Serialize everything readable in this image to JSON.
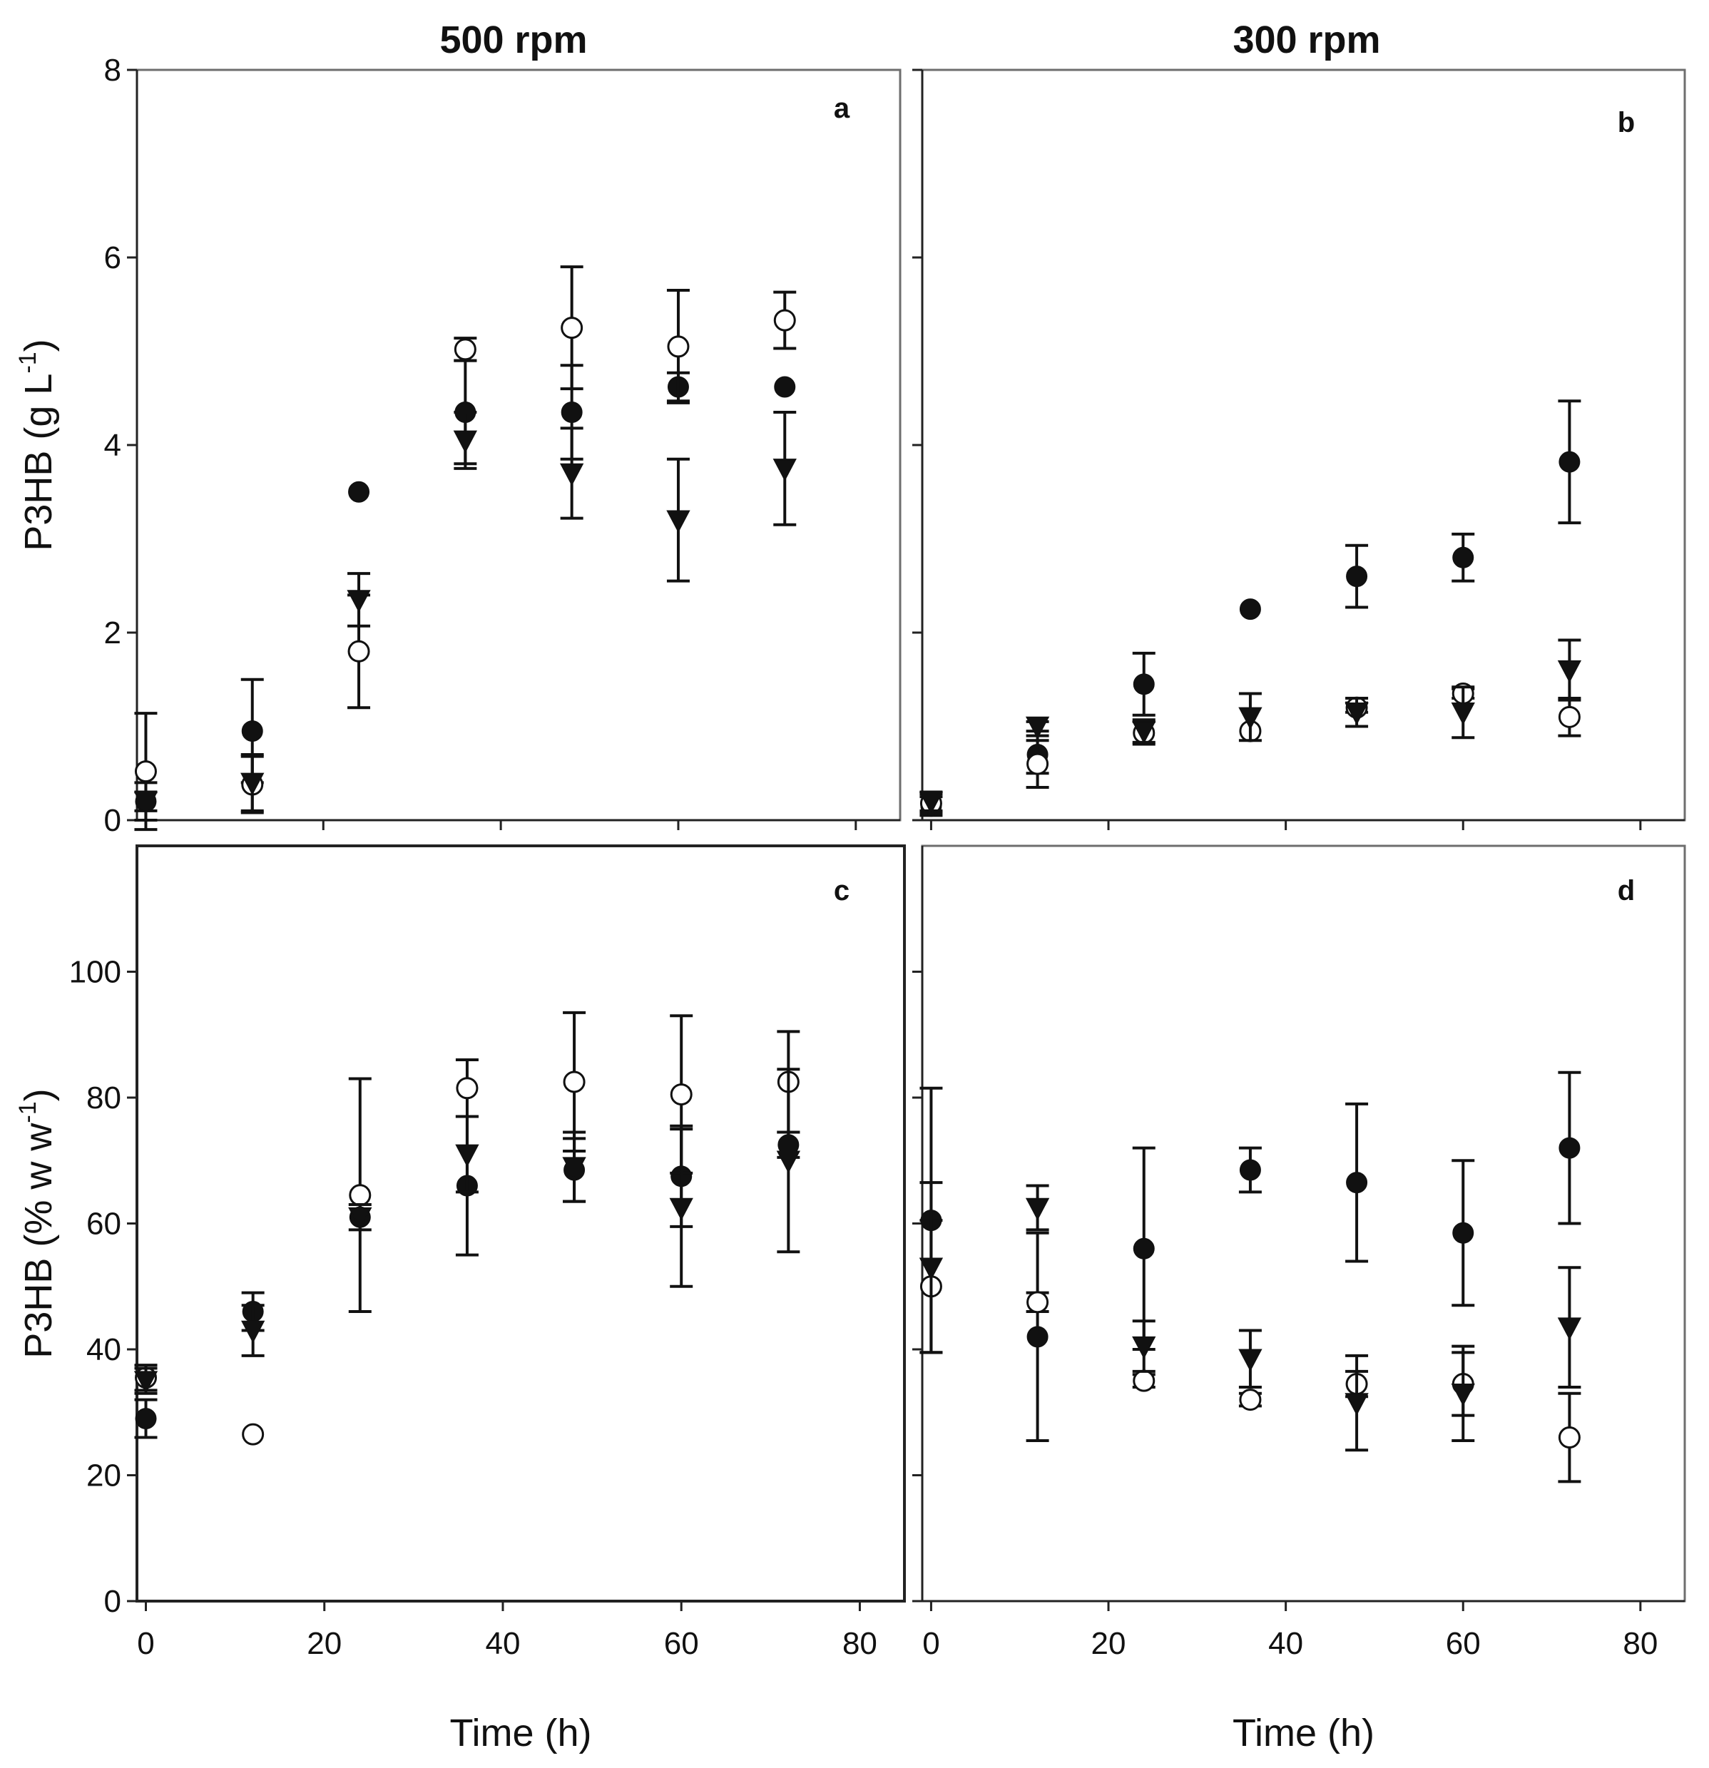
{
  "figure": {
    "column_titles": [
      "500 rpm",
      "300 rpm"
    ]
  },
  "chart_data": [
    {
      "type": "scatter",
      "panel": "a",
      "column_title": "500 rpm",
      "xlabel": "",
      "ylabel": "P3HB (g L-1)",
      "xlim": [
        -1,
        85
      ],
      "ylim": [
        0,
        8
      ],
      "xticks": [
        0,
        20,
        40,
        60,
        80
      ],
      "yticks": [
        0,
        2,
        4,
        6,
        8
      ],
      "x_tick_labels_shown": false,
      "y_tick_labels_shown": true,
      "error_bars": true,
      "series": [
        {
          "marker": "filled-circle",
          "points": [
            {
              "x": 0,
              "y": 0.2,
              "err": 0.2
            },
            {
              "x": 12,
              "y": 0.95,
              "err": 0.55
            },
            {
              "x": 24,
              "y": 3.5,
              "err": 0
            },
            {
              "x": 36,
              "y": 4.35,
              "err": 0.55
            },
            {
              "x": 48,
              "y": 4.35,
              "err": 0.5
            },
            {
              "x": 60,
              "y": 4.62,
              "err": 0.15
            },
            {
              "x": 72,
              "y": 4.62,
              "err": 0
            }
          ]
        },
        {
          "marker": "open-circle",
          "points": [
            {
              "x": 0,
              "y": 0.52,
              "err": 0.62
            },
            {
              "x": 12,
              "y": 0.38,
              "err": 0.3
            },
            {
              "x": 24,
              "y": 1.8,
              "err": 0.6
            },
            {
              "x": 36,
              "y": 5.02,
              "err": 0.12
            },
            {
              "x": 48,
              "y": 5.25,
              "err": 0.65
            },
            {
              "x": 60,
              "y": 5.05,
              "err": 0.6
            },
            {
              "x": 72,
              "y": 5.33,
              "err": 0.3
            }
          ]
        },
        {
          "marker": "filled-triangle-down",
          "points": [
            {
              "x": 0,
              "y": 0.2,
              "err": 0.1
            },
            {
              "x": 12,
              "y": 0.4,
              "err": 0.3
            },
            {
              "x": 24,
              "y": 2.35,
              "err": 0.28
            },
            {
              "x": 36,
              "y": 4.05,
              "err": 0.3
            },
            {
              "x": 48,
              "y": 3.7,
              "err": 0.48
            },
            {
              "x": 60,
              "y": 3.2,
              "err": 0.65
            },
            {
              "x": 72,
              "y": 3.75,
              "err": 0.6
            }
          ]
        }
      ]
    },
    {
      "type": "scatter",
      "panel": "b",
      "column_title": "300 rpm",
      "xlabel": "",
      "ylabel": "",
      "xlim": [
        -1,
        85
      ],
      "ylim": [
        0,
        8
      ],
      "xticks": [
        0,
        20,
        40,
        60,
        80
      ],
      "yticks": [
        0,
        2,
        4,
        6,
        8
      ],
      "x_tick_labels_shown": false,
      "y_tick_labels_shown": false,
      "error_bars": true,
      "series": [
        {
          "marker": "filled-circle",
          "points": [
            {
              "x": 0,
              "y": 0.15,
              "err": 0.1
            },
            {
              "x": 12,
              "y": 0.7,
              "err": 0.2
            },
            {
              "x": 24,
              "y": 1.45,
              "err": 0.33
            },
            {
              "x": 36,
              "y": 2.25,
              "err": 0
            },
            {
              "x": 48,
              "y": 2.6,
              "err": 0.33
            },
            {
              "x": 60,
              "y": 2.8,
              "err": 0.25
            },
            {
              "x": 72,
              "y": 3.82,
              "err": 0.65
            }
          ]
        },
        {
          "marker": "open-circle",
          "points": [
            {
              "x": 0,
              "y": 0.18,
              "err": 0.1
            },
            {
              "x": 12,
              "y": 0.6,
              "err": 0.25
            },
            {
              "x": 24,
              "y": 0.93,
              "err": 0.12
            },
            {
              "x": 36,
              "y": 0.95,
              "err": 0
            },
            {
              "x": 48,
              "y": 1.2,
              "err": 0.05
            },
            {
              "x": 60,
              "y": 1.35,
              "err": 0.05
            },
            {
              "x": 72,
              "y": 1.1,
              "err": 0.2
            }
          ]
        },
        {
          "marker": "filled-triangle-down",
          "points": [
            {
              "x": 0,
              "y": 0.2,
              "err": 0.1
            },
            {
              "x": 12,
              "y": 1.0,
              "err": 0.05
            },
            {
              "x": 24,
              "y": 0.95,
              "err": 0.12
            },
            {
              "x": 36,
              "y": 1.1,
              "err": 0.25
            },
            {
              "x": 48,
              "y": 1.15,
              "err": 0.15
            },
            {
              "x": 60,
              "y": 1.15,
              "err": 0.27
            },
            {
              "x": 72,
              "y": 1.6,
              "err": 0.32
            }
          ]
        }
      ]
    },
    {
      "type": "scatter",
      "panel": "c",
      "xlabel": "Time (h)",
      "ylabel": "P3HB (% w w-1)",
      "xlim": [
        -1,
        85
      ],
      "ylim": [
        0,
        120
      ],
      "xticks": [
        0,
        20,
        40,
        60,
        80
      ],
      "yticks": [
        0,
        20,
        40,
        60,
        80,
        100
      ],
      "x_tick_labels_shown": true,
      "y_tick_labels_shown": true,
      "error_bars": true,
      "series": [
        {
          "marker": "filled-circle",
          "points": [
            {
              "x": 0,
              "y": 29,
              "err": 3
            },
            {
              "x": 12,
              "y": 46,
              "err": 3
            },
            {
              "x": 24,
              "y": 61,
              "err": 0
            },
            {
              "x": 36,
              "y": 66,
              "err": 11
            },
            {
              "x": 48,
              "y": 68.5,
              "err": 5
            },
            {
              "x": 60,
              "y": 67.5,
              "err": 8
            },
            {
              "x": 72,
              "y": 72.5,
              "err": 2
            }
          ]
        },
        {
          "marker": "open-circle",
          "points": [
            {
              "x": 0,
              "y": 35.5,
              "err": 2
            },
            {
              "x": 12,
              "y": 26.5,
              "err": 0
            },
            {
              "x": 24,
              "y": 64.5,
              "err": 18.5
            },
            {
              "x": 36,
              "y": 81.5,
              "err": 4.5
            },
            {
              "x": 48,
              "y": 82.5,
              "err": 11
            },
            {
              "x": 60,
              "y": 80.5,
              "err": 12.5
            },
            {
              "x": 72,
              "y": 82.5,
              "err": 8
            }
          ]
        },
        {
          "marker": "filled-triangle-down",
          "points": [
            {
              "x": 0,
              "y": 35,
              "err": 2
            },
            {
              "x": 12,
              "y": 43,
              "err": 4
            },
            {
              "x": 24,
              "y": 61,
              "err": 2
            },
            {
              "x": 36,
              "y": 71,
              "err": 6
            },
            {
              "x": 48,
              "y": 69,
              "err": 5.5
            },
            {
              "x": 60,
              "y": 62.5,
              "err": 12.5
            },
            {
              "x": 72,
              "y": 70,
              "err": 14.5
            }
          ]
        }
      ]
    },
    {
      "type": "scatter",
      "panel": "d",
      "xlabel": "Time (h)",
      "ylabel": "",
      "xlim": [
        -1,
        85
      ],
      "ylim": [
        0,
        120
      ],
      "xticks": [
        0,
        20,
        40,
        60,
        80
      ],
      "yticks": [
        0,
        20,
        40,
        60,
        80,
        100
      ],
      "x_tick_labels_shown": true,
      "y_tick_labels_shown": false,
      "error_bars": true,
      "series": [
        {
          "marker": "filled-circle",
          "points": [
            {
              "x": 0,
              "y": 60.5,
              "err": 21
            },
            {
              "x": 12,
              "y": 42,
              "err": 16.5
            },
            {
              "x": 24,
              "y": 56,
              "err": 16
            },
            {
              "x": 36,
              "y": 68.5,
              "err": 3.5
            },
            {
              "x": 48,
              "y": 66.5,
              "err": 12.5
            },
            {
              "x": 60,
              "y": 58.5,
              "err": 11.5
            },
            {
              "x": 72,
              "y": 72,
              "err": 12
            }
          ]
        },
        {
          "marker": "open-circle",
          "points": [
            {
              "x": 0,
              "y": 50,
              "err": 10.5
            },
            {
              "x": 12,
              "y": 47.5,
              "err": 1.5
            },
            {
              "x": 24,
              "y": 35,
              "err": 1
            },
            {
              "x": 36,
              "y": 32,
              "err": 1
            },
            {
              "x": 48,
              "y": 34.5,
              "err": 2
            },
            {
              "x": 60,
              "y": 34.5,
              "err": 5
            },
            {
              "x": 72,
              "y": 26,
              "err": 7
            }
          ]
        },
        {
          "marker": "filled-triangle-down",
          "points": [
            {
              "x": 0,
              "y": 53,
              "err": 13.5
            },
            {
              "x": 12,
              "y": 62.5,
              "err": 3.5
            },
            {
              "x": 24,
              "y": 40.5,
              "err": 4
            },
            {
              "x": 36,
              "y": 38.5,
              "err": 4.5
            },
            {
              "x": 48,
              "y": 31.5,
              "err": 7.5
            },
            {
              "x": 60,
              "y": 33,
              "err": 7.5
            },
            {
              "x": 72,
              "y": 43.5,
              "err": 9.5
            }
          ]
        }
      ]
    }
  ]
}
